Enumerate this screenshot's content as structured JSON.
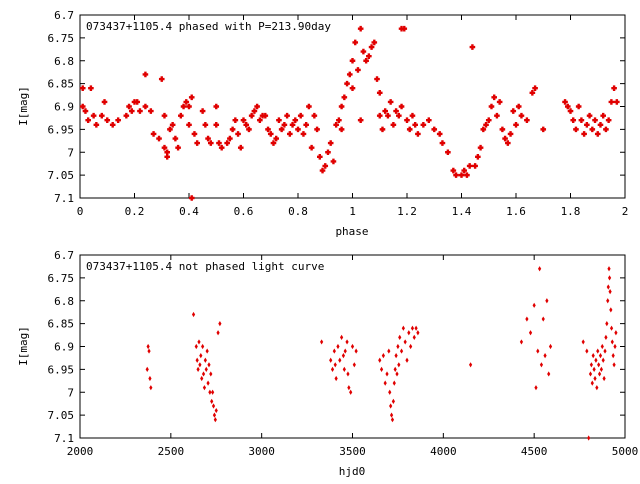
{
  "chart_data": [
    {
      "type": "scatter",
      "title": "073437+1105.4 phased with P=213.90day",
      "xlabel": "phase",
      "ylabel": "I[mag]",
      "xlim": [
        0,
        2
      ],
      "ylim": [
        6.7,
        7.1
      ],
      "y_inverted": true,
      "grid": false,
      "marker_color": "#e00000",
      "xticks": [
        "0",
        "0.2",
        "0.4",
        "0.6",
        "0.8",
        "1",
        "1.2",
        "1.4",
        "1.6",
        "1.8",
        "2"
      ],
      "yticks": [
        "6.7",
        "6.75",
        "6.8",
        "6.85",
        "6.9",
        "6.95",
        "7",
        "7.05",
        "7.1"
      ],
      "xtick_values": [
        0,
        0.2,
        0.4,
        0.6,
        0.8,
        1.0,
        1.2,
        1.4,
        1.6,
        1.8,
        2.0
      ],
      "ytick_values": [
        6.7,
        6.75,
        6.8,
        6.85,
        6.9,
        6.95,
        7.0,
        7.05,
        7.1
      ],
      "points": [
        [
          0.01,
          6.9
        ],
        [
          0.01,
          6.86
        ],
        [
          0.02,
          6.91
        ],
        [
          0.03,
          6.93
        ],
        [
          0.04,
          6.86
        ],
        [
          0.05,
          6.92
        ],
        [
          0.06,
          6.94
        ],
        [
          0.08,
          6.92
        ],
        [
          0.09,
          6.89
        ],
        [
          0.1,
          6.93
        ],
        [
          0.12,
          6.94
        ],
        [
          0.14,
          6.93
        ],
        [
          0.17,
          6.92
        ],
        [
          0.18,
          6.9
        ],
        [
          0.19,
          6.91
        ],
        [
          0.2,
          6.89
        ],
        [
          0.21,
          6.89
        ],
        [
          0.22,
          6.91
        ],
        [
          0.24,
          6.9
        ],
        [
          0.24,
          6.83
        ],
        [
          0.26,
          6.91
        ],
        [
          0.27,
          6.96
        ],
        [
          0.29,
          6.97
        ],
        [
          0.3,
          6.84
        ],
        [
          0.31,
          6.92
        ],
        [
          0.31,
          6.99
        ],
        [
          0.32,
          7.0
        ],
        [
          0.32,
          7.01
        ],
        [
          0.33,
          6.95
        ],
        [
          0.34,
          6.94
        ],
        [
          0.35,
          6.97
        ],
        [
          0.36,
          6.99
        ],
        [
          0.37,
          6.92
        ],
        [
          0.38,
          6.9
        ],
        [
          0.39,
          6.89
        ],
        [
          0.4,
          6.9
        ],
        [
          0.4,
          6.94
        ],
        [
          0.41,
          6.88
        ],
        [
          0.41,
          7.1
        ],
        [
          0.42,
          6.96
        ],
        [
          0.43,
          6.98
        ],
        [
          0.45,
          6.91
        ],
        [
          0.46,
          6.94
        ],
        [
          0.47,
          6.97
        ],
        [
          0.48,
          6.98
        ],
        [
          0.5,
          6.9
        ],
        [
          0.5,
          6.94
        ],
        [
          0.51,
          6.98
        ],
        [
          0.52,
          6.99
        ],
        [
          0.54,
          6.98
        ],
        [
          0.55,
          6.97
        ],
        [
          0.56,
          6.95
        ],
        [
          0.57,
          6.93
        ],
        [
          0.58,
          6.96
        ],
        [
          0.59,
          6.99
        ],
        [
          0.6,
          6.93
        ],
        [
          0.61,
          6.94
        ],
        [
          0.62,
          6.95
        ],
        [
          0.63,
          6.92
        ],
        [
          0.64,
          6.91
        ],
        [
          0.65,
          6.9
        ],
        [
          0.66,
          6.93
        ],
        [
          0.67,
          6.92
        ],
        [
          0.68,
          6.92
        ],
        [
          0.69,
          6.95
        ],
        [
          0.7,
          6.96
        ],
        [
          0.71,
          6.98
        ],
        [
          0.72,
          6.97
        ],
        [
          0.73,
          6.93
        ],
        [
          0.74,
          6.95
        ],
        [
          0.75,
          6.94
        ],
        [
          0.76,
          6.92
        ],
        [
          0.77,
          6.96
        ],
        [
          0.78,
          6.94
        ],
        [
          0.79,
          6.93
        ],
        [
          0.8,
          6.95
        ],
        [
          0.81,
          6.92
        ],
        [
          0.82,
          6.96
        ],
        [
          0.83,
          6.94
        ],
        [
          0.84,
          6.9
        ],
        [
          0.85,
          6.99
        ],
        [
          0.86,
          6.92
        ],
        [
          0.87,
          6.95
        ],
        [
          0.88,
          7.01
        ],
        [
          0.89,
          7.04
        ],
        [
          0.9,
          7.03
        ],
        [
          0.91,
          7.0
        ],
        [
          0.92,
          6.98
        ],
        [
          0.93,
          7.02
        ],
        [
          0.94,
          6.94
        ],
        [
          0.95,
          6.93
        ],
        [
          0.96,
          6.9
        ],
        [
          0.96,
          6.95
        ],
        [
          0.97,
          6.88
        ],
        [
          0.98,
          6.85
        ],
        [
          0.99,
          6.83
        ],
        [
          1.0,
          6.86
        ],
        [
          1.0,
          6.8
        ],
        [
          1.01,
          6.76
        ],
        [
          1.02,
          6.82
        ],
        [
          1.03,
          6.73
        ],
        [
          1.03,
          6.93
        ],
        [
          1.04,
          6.78
        ],
        [
          1.05,
          6.8
        ],
        [
          1.06,
          6.79
        ],
        [
          1.07,
          6.77
        ],
        [
          1.08,
          6.76
        ],
        [
          1.09,
          6.84
        ],
        [
          1.1,
          6.87
        ],
        [
          1.1,
          6.92
        ],
        [
          1.11,
          6.95
        ],
        [
          1.12,
          6.91
        ],
        [
          1.13,
          6.92
        ],
        [
          1.14,
          6.89
        ],
        [
          1.15,
          6.94
        ],
        [
          1.16,
          6.91
        ],
        [
          1.17,
          6.92
        ],
        [
          1.18,
          6.9
        ],
        [
          1.18,
          6.73
        ],
        [
          1.19,
          6.73
        ],
        [
          1.2,
          6.93
        ],
        [
          1.21,
          6.95
        ],
        [
          1.22,
          6.92
        ],
        [
          1.23,
          6.94
        ],
        [
          1.24,
          6.96
        ],
        [
          1.26,
          6.94
        ],
        [
          1.28,
          6.93
        ],
        [
          1.3,
          6.95
        ],
        [
          1.32,
          6.96
        ],
        [
          1.33,
          6.98
        ],
        [
          1.35,
          7.0
        ],
        [
          1.37,
          7.04
        ],
        [
          1.38,
          7.05
        ],
        [
          1.4,
          7.05
        ],
        [
          1.41,
          7.04
        ],
        [
          1.42,
          7.05
        ],
        [
          1.43,
          7.03
        ],
        [
          1.44,
          6.77
        ],
        [
          1.45,
          7.03
        ],
        [
          1.46,
          7.01
        ],
        [
          1.47,
          6.99
        ],
        [
          1.48,
          6.95
        ],
        [
          1.49,
          6.94
        ],
        [
          1.5,
          6.93
        ],
        [
          1.51,
          6.9
        ],
        [
          1.52,
          6.88
        ],
        [
          1.53,
          6.92
        ],
        [
          1.54,
          6.89
        ],
        [
          1.55,
          6.95
        ],
        [
          1.56,
          6.97
        ],
        [
          1.57,
          6.98
        ],
        [
          1.58,
          6.96
        ],
        [
          1.59,
          6.91
        ],
        [
          1.6,
          6.94
        ],
        [
          1.61,
          6.9
        ],
        [
          1.62,
          6.92
        ],
        [
          1.64,
          6.93
        ],
        [
          1.66,
          6.87
        ],
        [
          1.67,
          6.86
        ],
        [
          1.7,
          6.95
        ],
        [
          1.78,
          6.89
        ],
        [
          1.79,
          6.9
        ],
        [
          1.8,
          6.91
        ],
        [
          1.81,
          6.93
        ],
        [
          1.82,
          6.95
        ],
        [
          1.83,
          6.9
        ],
        [
          1.84,
          6.93
        ],
        [
          1.85,
          6.96
        ],
        [
          1.86,
          6.94
        ],
        [
          1.87,
          6.92
        ],
        [
          1.88,
          6.95
        ],
        [
          1.89,
          6.93
        ],
        [
          1.9,
          6.96
        ],
        [
          1.91,
          6.94
        ],
        [
          1.92,
          6.92
        ],
        [
          1.93,
          6.95
        ],
        [
          1.94,
          6.93
        ],
        [
          1.95,
          6.89
        ],
        [
          1.96,
          6.86
        ],
        [
          1.97,
          6.89
        ]
      ]
    },
    {
      "type": "scatter",
      "title": "073437+1105.4 not phased light curve",
      "xlabel": "hjd0",
      "ylabel": "I[mag]",
      "xlim": [
        2000,
        5000
      ],
      "ylim": [
        6.7,
        7.1
      ],
      "y_inverted": true,
      "grid": false,
      "marker_color": "#e00000",
      "xticks": [
        "2000",
        "2500",
        "3000",
        "3500",
        "4000",
        "4500",
        "5000"
      ],
      "yticks": [
        "6.7",
        "6.75",
        "6.8",
        "6.85",
        "6.9",
        "6.95",
        "7",
        "7.05",
        "7.1"
      ],
      "xtick_values": [
        2000,
        2500,
        3000,
        3500,
        4000,
        4500,
        5000
      ],
      "ytick_values": [
        6.7,
        6.75,
        6.8,
        6.85,
        6.9,
        6.95,
        7.0,
        7.05,
        7.1
      ],
      "points": [
        [
          2370,
          6.95
        ],
        [
          2375,
          6.9
        ],
        [
          2380,
          6.91
        ],
        [
          2385,
          6.97
        ],
        [
          2390,
          6.99
        ],
        [
          2625,
          6.83
        ],
        [
          2640,
          6.9
        ],
        [
          2645,
          6.93
        ],
        [
          2650,
          6.95
        ],
        [
          2655,
          6.89
        ],
        [
          2660,
          6.94
        ],
        [
          2665,
          6.92
        ],
        [
          2670,
          6.97
        ],
        [
          2675,
          6.9
        ],
        [
          2680,
          6.96
        ],
        [
          2685,
          6.99
        ],
        [
          2690,
          6.93
        ],
        [
          2695,
          6.95
        ],
        [
          2700,
          6.91
        ],
        [
          2705,
          6.98
        ],
        [
          2710,
          6.94
        ],
        [
          2715,
          7.0
        ],
        [
          2720,
          6.96
        ],
        [
          2725,
          7.02
        ],
        [
          2730,
          7.0
        ],
        [
          2735,
          7.03
        ],
        [
          2740,
          7.05
        ],
        [
          2745,
          7.06
        ],
        [
          2750,
          7.04
        ],
        [
          2760,
          6.87
        ],
        [
          2770,
          6.85
        ],
        [
          3330,
          6.89
        ],
        [
          3380,
          6.93
        ],
        [
          3390,
          6.95
        ],
        [
          3400,
          6.91
        ],
        [
          3405,
          6.94
        ],
        [
          3410,
          6.97
        ],
        [
          3420,
          6.9
        ],
        [
          3430,
          6.93
        ],
        [
          3440,
          6.88
        ],
        [
          3450,
          6.92
        ],
        [
          3455,
          6.95
        ],
        [
          3460,
          6.91
        ],
        [
          3470,
          6.89
        ],
        [
          3475,
          6.96
        ],
        [
          3480,
          6.99
        ],
        [
          3490,
          7.0
        ],
        [
          3500,
          6.9
        ],
        [
          3510,
          6.94
        ],
        [
          3520,
          6.91
        ],
        [
          3650,
          6.93
        ],
        [
          3660,
          6.95
        ],
        [
          3670,
          6.92
        ],
        [
          3680,
          6.98
        ],
        [
          3690,
          6.96
        ],
        [
          3700,
          6.91
        ],
        [
          3705,
          7.0
        ],
        [
          3710,
          7.03
        ],
        [
          3715,
          7.05
        ],
        [
          3720,
          7.06
        ],
        [
          3725,
          7.02
        ],
        [
          3730,
          6.98
        ],
        [
          3735,
          6.95
        ],
        [
          3740,
          6.92
        ],
        [
          3745,
          6.96
        ],
        [
          3750,
          6.9
        ],
        [
          3755,
          6.94
        ],
        [
          3760,
          6.88
        ],
        [
          3770,
          6.91
        ],
        [
          3780,
          6.86
        ],
        [
          3790,
          6.89
        ],
        [
          3800,
          6.93
        ],
        [
          3810,
          6.87
        ],
        [
          3820,
          6.9
        ],
        [
          3830,
          6.86
        ],
        [
          3840,
          6.88
        ],
        [
          3850,
          6.86
        ],
        [
          3860,
          6.87
        ],
        [
          4150,
          6.94
        ],
        [
          4430,
          6.89
        ],
        [
          4460,
          6.84
        ],
        [
          4480,
          6.87
        ],
        [
          4500,
          6.81
        ],
        [
          4510,
          6.99
        ],
        [
          4520,
          6.91
        ],
        [
          4530,
          6.73
        ],
        [
          4540,
          6.94
        ],
        [
          4550,
          6.84
        ],
        [
          4560,
          6.92
        ],
        [
          4570,
          6.8
        ],
        [
          4580,
          6.96
        ],
        [
          4590,
          6.9
        ],
        [
          4770,
          6.89
        ],
        [
          4790,
          6.91
        ],
        [
          4800,
          7.1
        ],
        [
          4810,
          6.96
        ],
        [
          4815,
          6.94
        ],
        [
          4820,
          6.98
        ],
        [
          4825,
          6.92
        ],
        [
          4830,
          6.95
        ],
        [
          4835,
          6.97
        ],
        [
          4840,
          6.93
        ],
        [
          4845,
          6.99
        ],
        [
          4850,
          6.91
        ],
        [
          4855,
          6.94
        ],
        [
          4860,
          6.96
        ],
        [
          4865,
          6.92
        ],
        [
          4870,
          6.95
        ],
        [
          4875,
          6.9
        ],
        [
          4880,
          6.93
        ],
        [
          4885,
          6.97
        ],
        [
          4890,
          6.91
        ],
        [
          4895,
          6.88
        ],
        [
          4900,
          6.85
        ],
        [
          4905,
          6.8
        ],
        [
          4908,
          6.77
        ],
        [
          4912,
          6.73
        ],
        [
          4915,
          6.75
        ],
        [
          4918,
          6.78
        ],
        [
          4922,
          6.82
        ],
        [
          4926,
          6.86
        ],
        [
          4930,
          6.89
        ],
        [
          4935,
          6.92
        ],
        [
          4940,
          6.94
        ],
        [
          4945,
          6.9
        ],
        [
          4950,
          6.87
        ]
      ]
    }
  ]
}
